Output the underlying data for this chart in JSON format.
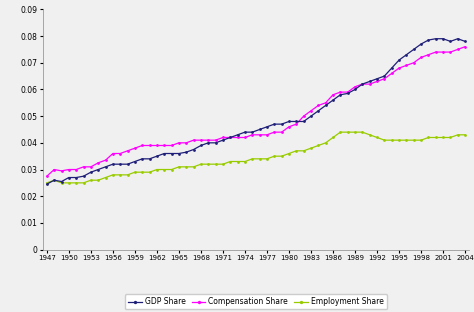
{
  "years": [
    1947,
    1948,
    1949,
    1950,
    1951,
    1952,
    1953,
    1954,
    1955,
    1956,
    1957,
    1958,
    1959,
    1960,
    1961,
    1962,
    1963,
    1964,
    1965,
    1966,
    1967,
    1968,
    1969,
    1970,
    1971,
    1972,
    1973,
    1974,
    1975,
    1976,
    1977,
    1978,
    1979,
    1980,
    1981,
    1982,
    1983,
    1984,
    1985,
    1986,
    1987,
    1988,
    1989,
    1990,
    1991,
    1992,
    1993,
    1994,
    1995,
    1996,
    1997,
    1998,
    1999,
    2000,
    2001,
    2002,
    2003,
    2004
  ],
  "gdp_share": [
    0.0245,
    0.026,
    0.0255,
    0.027,
    0.027,
    0.0275,
    0.029,
    0.03,
    0.031,
    0.032,
    0.032,
    0.032,
    0.033,
    0.034,
    0.034,
    0.035,
    0.036,
    0.036,
    0.036,
    0.0365,
    0.0375,
    0.039,
    0.04,
    0.04,
    0.041,
    0.042,
    0.043,
    0.044,
    0.044,
    0.045,
    0.046,
    0.047,
    0.047,
    0.048,
    0.048,
    0.048,
    0.05,
    0.052,
    0.054,
    0.056,
    0.058,
    0.0585,
    0.06,
    0.062,
    0.063,
    0.064,
    0.065,
    0.068,
    0.071,
    0.073,
    0.075,
    0.077,
    0.0785,
    0.079,
    0.079,
    0.078,
    0.079,
    0.078
  ],
  "compensation_share": [
    0.0275,
    0.03,
    0.0295,
    0.03,
    0.03,
    0.031,
    0.031,
    0.0325,
    0.0335,
    0.036,
    0.036,
    0.037,
    0.038,
    0.039,
    0.039,
    0.039,
    0.039,
    0.039,
    0.04,
    0.04,
    0.041,
    0.041,
    0.041,
    0.041,
    0.042,
    0.042,
    0.042,
    0.042,
    0.043,
    0.043,
    0.043,
    0.044,
    0.044,
    0.046,
    0.047,
    0.05,
    0.052,
    0.054,
    0.055,
    0.058,
    0.059,
    0.059,
    0.061,
    0.062,
    0.062,
    0.063,
    0.064,
    0.066,
    0.068,
    0.069,
    0.07,
    0.072,
    0.073,
    0.074,
    0.074,
    0.074,
    0.075,
    0.076
  ],
  "employment_share": [
    0.025,
    0.026,
    0.025,
    0.025,
    0.025,
    0.025,
    0.026,
    0.026,
    0.027,
    0.028,
    0.028,
    0.028,
    0.029,
    0.029,
    0.029,
    0.03,
    0.03,
    0.03,
    0.031,
    0.031,
    0.031,
    0.032,
    0.032,
    0.032,
    0.032,
    0.033,
    0.033,
    0.033,
    0.034,
    0.034,
    0.034,
    0.035,
    0.035,
    0.036,
    0.037,
    0.037,
    0.038,
    0.039,
    0.04,
    0.042,
    0.044,
    0.044,
    0.044,
    0.044,
    0.043,
    0.042,
    0.041,
    0.041,
    0.041,
    0.041,
    0.041,
    0.041,
    0.042,
    0.042,
    0.042,
    0.042,
    0.043,
    0.043
  ],
  "gdp_color": "#1f1f7a",
  "comp_color": "#ff00ff",
  "emp_color": "#99cc00",
  "ylim": [
    0,
    0.09
  ],
  "ytick_labels": [
    "0",
    "0.01",
    "0.02",
    "0.03",
    "0.04",
    "0.05",
    "0.06",
    "0.07",
    "0.08",
    "0.09"
  ],
  "ytick_values": [
    0,
    0.01,
    0.02,
    0.03,
    0.04,
    0.05,
    0.06,
    0.07,
    0.08,
    0.09
  ],
  "xticks": [
    1947,
    1950,
    1953,
    1956,
    1959,
    1962,
    1965,
    1968,
    1971,
    1974,
    1977,
    1980,
    1983,
    1986,
    1989,
    1992,
    1995,
    1998,
    2001,
    2004
  ],
  "legend_labels": [
    "GDP Share",
    "Compensation Share",
    "Employment Share"
  ],
  "marker_size": 2.0,
  "linewidth": 0.9,
  "background_color": "#f0f0f0"
}
